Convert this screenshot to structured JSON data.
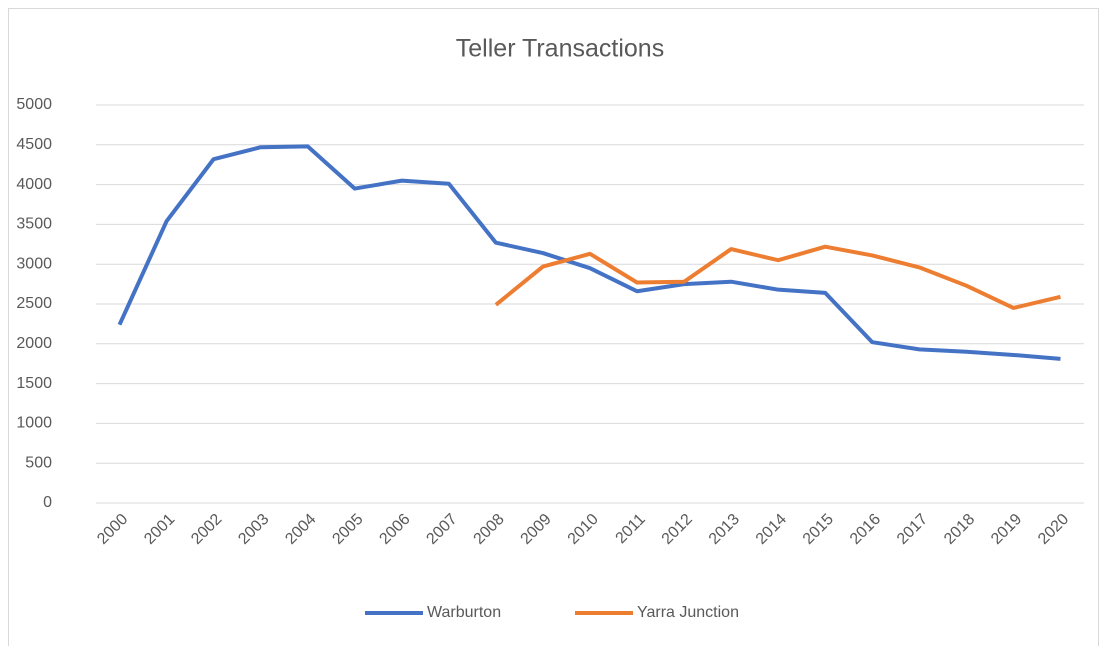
{
  "chart_data": {
    "type": "line",
    "title": "Teller Transactions",
    "categories": [
      "2000",
      "2001",
      "2002",
      "2003",
      "2004",
      "2005",
      "2006",
      "2007",
      "2008",
      "2009",
      "2010",
      "2011",
      "2012",
      "2013",
      "2014",
      "2015",
      "2016",
      "2017",
      "2018",
      "2019",
      "2020"
    ],
    "series": [
      {
        "name": "Warburton",
        "color": "#4472c4",
        "values": [
          2240,
          3540,
          4320,
          4470,
          4480,
          3950,
          4050,
          4010,
          3270,
          3140,
          2950,
          2660,
          2750,
          2780,
          2680,
          2640,
          2020,
          1930,
          1900,
          1860,
          1810
        ]
      },
      {
        "name": "Yarra Junction",
        "color": "#ed7d31",
        "values": [
          null,
          null,
          null,
          null,
          null,
          null,
          null,
          null,
          2490,
          2970,
          3130,
          2770,
          2780,
          3190,
          3050,
          3220,
          3110,
          2960,
          2730,
          2450,
          2590
        ]
      }
    ],
    "ylim": [
      0,
      5000
    ],
    "yticks": [
      0,
      500,
      1000,
      1500,
      2000,
      2500,
      3000,
      3500,
      4000,
      4500,
      5000
    ],
    "grid": true,
    "legend": "bottom"
  }
}
